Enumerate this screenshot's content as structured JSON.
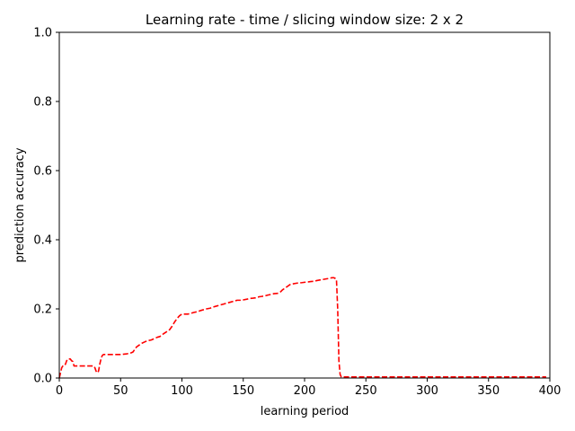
{
  "chart_data": {
    "type": "line",
    "title": "Learning rate - time / slicing window size: 2 x 2",
    "xlabel": "learning period",
    "ylabel": "prediction accuracy",
    "xlim": [
      0,
      400
    ],
    "ylim": [
      0,
      1
    ],
    "xticks": [
      0,
      50,
      100,
      150,
      200,
      250,
      300,
      350,
      400
    ],
    "yticks": [
      0.0,
      0.2,
      0.4,
      0.6,
      0.8,
      1.0
    ],
    "xtick_labels": [
      "0",
      "50",
      "100",
      "150",
      "200",
      "250",
      "300",
      "350",
      "400"
    ],
    "ytick_labels": [
      "0.0",
      "0.2",
      "0.4",
      "0.6",
      "0.8",
      "1.0"
    ],
    "grid": false,
    "series": [
      {
        "color": "#ff0000",
        "linestyle": "dashed",
        "x": [
          0,
          1,
          2,
          3,
          4,
          5,
          6,
          7,
          8,
          9,
          10,
          11,
          12,
          13,
          15,
          20,
          25,
          28,
          29,
          30,
          31,
          32,
          33,
          34,
          35,
          36,
          38,
          40,
          45,
          50,
          55,
          58,
          60,
          61,
          62,
          63,
          65,
          67,
          70,
          72,
          75,
          78,
          80,
          82,
          85,
          88,
          90,
          92,
          94,
          96,
          98,
          100,
          103,
          105,
          108,
          110,
          113,
          115,
          118,
          120,
          123,
          125,
          128,
          130,
          133,
          135,
          138,
          140,
          142,
          145,
          148,
          150,
          153,
          155,
          158,
          160,
          163,
          165,
          168,
          170,
          173,
          175,
          178,
          180,
          182,
          184,
          186,
          188,
          190,
          193,
          195,
          198,
          200,
          203,
          205,
          208,
          210,
          213,
          215,
          218,
          220,
          222,
          224,
          225,
          226,
          227,
          228,
          229,
          230,
          235,
          240,
          250,
          300,
          350,
          397
        ],
        "y": [
          0.0,
          0.015,
          0.03,
          0.035,
          0.035,
          0.04,
          0.05,
          0.055,
          0.055,
          0.055,
          0.05,
          0.048,
          0.035,
          0.035,
          0.035,
          0.035,
          0.035,
          0.035,
          0.03,
          0.02,
          0.015,
          0.02,
          0.04,
          0.055,
          0.065,
          0.068,
          0.068,
          0.068,
          0.068,
          0.068,
          0.07,
          0.072,
          0.075,
          0.08,
          0.085,
          0.09,
          0.095,
          0.1,
          0.105,
          0.108,
          0.11,
          0.115,
          0.118,
          0.12,
          0.128,
          0.135,
          0.14,
          0.15,
          0.162,
          0.172,
          0.18,
          0.185,
          0.185,
          0.185,
          0.188,
          0.19,
          0.192,
          0.195,
          0.198,
          0.2,
          0.202,
          0.205,
          0.208,
          0.21,
          0.213,
          0.215,
          0.218,
          0.22,
          0.222,
          0.225,
          0.225,
          0.226,
          0.228,
          0.23,
          0.231,
          0.232,
          0.235,
          0.236,
          0.238,
          0.24,
          0.242,
          0.244,
          0.245,
          0.248,
          0.255,
          0.26,
          0.265,
          0.27,
          0.272,
          0.274,
          0.275,
          0.276,
          0.277,
          0.278,
          0.279,
          0.28,
          0.282,
          0.284,
          0.285,
          0.287,
          0.288,
          0.29,
          0.29,
          0.288,
          0.285,
          0.2,
          0.05,
          0.01,
          0.003,
          0.003,
          0.003,
          0.003,
          0.003,
          0.003,
          0.003
        ]
      }
    ]
  }
}
